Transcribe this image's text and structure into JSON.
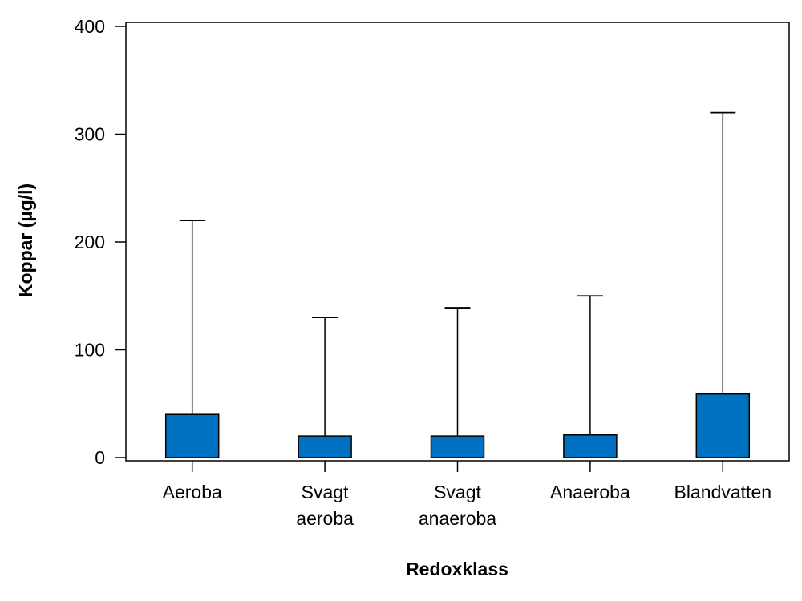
{
  "chart_data": {
    "type": "bar",
    "title": "",
    "xlabel": "Redoxklass",
    "ylabel": "Koppar (µg/l)",
    "ylim": [
      0,
      400
    ],
    "yticks": [
      0,
      100,
      200,
      300,
      400
    ],
    "categories": [
      [
        "Aeroba"
      ],
      [
        "Svagt",
        "aeroba"
      ],
      [
        "Svagt",
        "anaeroba"
      ],
      [
        "Anaeroba"
      ],
      [
        "Blandvatten"
      ]
    ],
    "values": [
      40,
      20,
      20,
      21,
      59
    ],
    "error_upper": [
      220,
      130,
      139,
      150,
      320
    ],
    "bar_color": "#0070c0",
    "grid": false,
    "legend": "none"
  }
}
